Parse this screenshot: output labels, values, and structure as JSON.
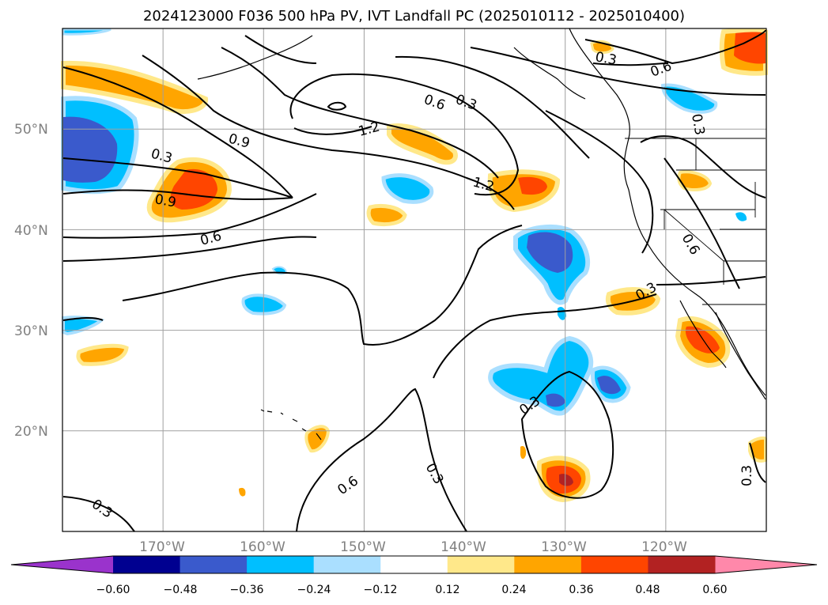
{
  "title": "2024123000 F036 500 hPa PV, IVT Landfall PC (2025010112 - 2025010400)",
  "map": {
    "lat_labels": [
      "50°N",
      "40°N",
      "30°N",
      "20°N"
    ],
    "lon_labels": [
      "170°W",
      "160°W",
      "150°W",
      "140°W",
      "130°W",
      "120°W"
    ],
    "grid_lats": [
      50,
      40,
      30,
      20
    ],
    "grid_lons": [
      -170,
      -160,
      -150,
      -140,
      -130,
      -120
    ],
    "extent": {
      "lon_min": -180,
      "lon_max": -110,
      "lat_min": 10,
      "lat_max": 60
    },
    "contour_labels": [
      "0.3",
      "0.9",
      "0.6",
      "1.2",
      "0.6",
      "0.3",
      "1.2",
      "0.9",
      "0.6",
      "0.3",
      "0.6",
      "0.3",
      "0.3",
      "0.3",
      "0.3",
      "0.6",
      "0.3",
      "0.3"
    ]
  },
  "colorbar": {
    "ticks": [
      "−0.60",
      "−0.48",
      "−0.36",
      "−0.24",
      "−0.12",
      "0.12",
      "0.24",
      "0.36",
      "0.48",
      "0.60"
    ],
    "colors": {
      "under": "#9a33cc",
      "bins": [
        "#000090",
        "#3a5acc",
        "#00bfff",
        "#aadfff",
        "#ffffff",
        "#ffe88a",
        "#ffa500",
        "#ff4500",
        "#b22222"
      ],
      "over": "#ff88aa"
    }
  }
}
